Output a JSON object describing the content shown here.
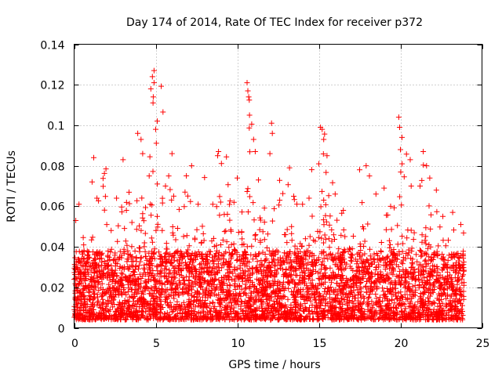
{
  "chart_data": {
    "type": "scatter",
    "title": "Day 174 of 2014, Rate Of TEC Index for receiver p372",
    "xlabel": "GPS time / hours",
    "ylabel": "ROTI / TECUs",
    "xlim": [
      0,
      25
    ],
    "ylim": [
      0,
      0.14
    ],
    "x_ticks": [
      0,
      5,
      10,
      15,
      20,
      25
    ],
    "x_tick_labels": [
      "0",
      "5",
      "10",
      "15",
      "20",
      "25"
    ],
    "y_ticks": [
      0,
      0.02,
      0.04,
      0.06,
      0.08,
      0.1,
      0.12,
      0.14
    ],
    "y_tick_labels": [
      "0",
      "0.02",
      "0.04",
      "0.06",
      "0.08",
      "0.1",
      "0.12",
      "0.14"
    ],
    "grid": true,
    "marker": "+",
    "color": "#ff0000",
    "x_range_of_data": [
      0,
      23.9
    ],
    "series": [
      {
        "name": "ROTI",
        "envelope_hours": [
          0,
          0.5,
          1,
          1.5,
          2,
          2.5,
          3,
          3.5,
          4,
          4.5,
          5,
          5.5,
          6,
          6.5,
          7,
          7.5,
          8,
          8.5,
          9,
          9.5,
          10,
          10.5,
          11,
          11.5,
          12,
          12.5,
          13,
          13.5,
          14,
          14.5,
          15,
          15.5,
          16,
          16.5,
          17,
          17.5,
          18,
          18.5,
          19,
          19.5,
          20,
          20.5,
          21,
          21.5,
          22,
          22.5,
          23,
          23.5
        ],
        "envelope_max": [
          0.054,
          0.062,
          0.064,
          0.084,
          0.058,
          0.064,
          0.083,
          0.066,
          0.097,
          0.118,
          0.127,
          0.073,
          0.081,
          0.077,
          0.066,
          0.08,
          0.062,
          0.072,
          0.087,
          0.07,
          0.074,
          0.121,
          0.093,
          0.075,
          0.101,
          0.078,
          0.079,
          0.07,
          0.066,
          0.082,
          0.099,
          0.09,
          0.065,
          0.065,
          0.058,
          0.079,
          0.077,
          0.066,
          0.07,
          0.073,
          0.104,
          0.083,
          0.087,
          0.081,
          0.066,
          0.055,
          0.058,
          0.051
        ],
        "points": [
          [
            0.1,
            0.053
          ],
          [
            0.3,
            0.061
          ],
          [
            0.6,
            0.033
          ],
          [
            1.1,
            0.072
          ],
          [
            1.2,
            0.084
          ],
          [
            1.4,
            0.064
          ],
          [
            2.0,
            0.051
          ],
          [
            2.6,
            0.064
          ],
          [
            3.0,
            0.083
          ],
          [
            3.2,
            0.058
          ],
          [
            3.9,
            0.096
          ],
          [
            4.1,
            0.093
          ],
          [
            4.2,
            0.086
          ],
          [
            4.6,
            0.075
          ],
          [
            4.7,
            0.118
          ],
          [
            4.8,
            0.124
          ],
          [
            4.85,
            0.114
          ],
          [
            4.9,
            0.127
          ],
          [
            4.9,
            0.121
          ],
          [
            5.0,
            0.098
          ],
          [
            5.1,
            0.071
          ],
          [
            5.6,
            0.07
          ],
          [
            5.8,
            0.075
          ],
          [
            6.0,
            0.086
          ],
          [
            6.1,
            0.065
          ],
          [
            6.8,
            0.067
          ],
          [
            7.2,
            0.08
          ],
          [
            7.6,
            0.061
          ],
          [
            8.5,
            0.061
          ],
          [
            8.8,
            0.085
          ],
          [
            8.85,
            0.087
          ],
          [
            9.2,
            0.056
          ],
          [
            9.8,
            0.062
          ],
          [
            10.0,
            0.074
          ],
          [
            10.6,
            0.121
          ],
          [
            10.65,
            0.117
          ],
          [
            10.7,
            0.114
          ],
          [
            10.75,
            0.105
          ],
          [
            11.0,
            0.093
          ],
          [
            11.1,
            0.087
          ],
          [
            11.3,
            0.073
          ],
          [
            12.0,
            0.086
          ],
          [
            12.1,
            0.101
          ],
          [
            12.15,
            0.096
          ],
          [
            12.6,
            0.063
          ],
          [
            13.2,
            0.079
          ],
          [
            14.0,
            0.061
          ],
          [
            14.4,
            0.064
          ],
          [
            15.0,
            0.081
          ],
          [
            15.1,
            0.099
          ],
          [
            15.2,
            0.098
          ],
          [
            15.3,
            0.093
          ],
          [
            15.5,
            0.085
          ],
          [
            16.0,
            0.066
          ],
          [
            16.5,
            0.058
          ],
          [
            17.5,
            0.078
          ],
          [
            17.9,
            0.08
          ],
          [
            18.1,
            0.075
          ],
          [
            18.5,
            0.066
          ],
          [
            19.0,
            0.069
          ],
          [
            19.4,
            0.06
          ],
          [
            19.9,
            0.104
          ],
          [
            19.95,
            0.099
          ],
          [
            20.0,
            0.088
          ],
          [
            20.1,
            0.081
          ],
          [
            20.6,
            0.083
          ],
          [
            21.2,
            0.07
          ],
          [
            21.4,
            0.087
          ],
          [
            21.6,
            0.08
          ],
          [
            21.8,
            0.074
          ],
          [
            22.2,
            0.068
          ],
          [
            22.6,
            0.055
          ],
          [
            23.2,
            0.057
          ],
          [
            23.7,
            0.051
          ],
          [
            0.4,
            0.012
          ],
          [
            0.9,
            0.018
          ],
          [
            1.6,
            0.025
          ],
          [
            2.2,
            0.009
          ],
          [
            2.9,
            0.021
          ],
          [
            3.6,
            0.015
          ],
          [
            4.3,
            0.031
          ],
          [
            5.4,
            0.019
          ],
          [
            6.3,
            0.027
          ],
          [
            7.0,
            0.011
          ],
          [
            7.9,
            0.034
          ],
          [
            8.3,
            0.016
          ],
          [
            9.1,
            0.022
          ],
          [
            9.6,
            0.008
          ],
          [
            10.3,
            0.041
          ],
          [
            11.6,
            0.024
          ],
          [
            12.4,
            0.013
          ],
          [
            13.0,
            0.029
          ],
          [
            13.7,
            0.018
          ],
          [
            14.2,
            0.036
          ],
          [
            14.8,
            0.02
          ],
          [
            15.8,
            0.014
          ],
          [
            16.3,
            0.032
          ],
          [
            16.9,
            0.01
          ],
          [
            17.3,
            0.025
          ],
          [
            18.3,
            0.019
          ],
          [
            18.8,
            0.038
          ],
          [
            19.3,
            0.012
          ],
          [
            20.3,
            0.027
          ],
          [
            20.9,
            0.016
          ],
          [
            21.5,
            0.033
          ],
          [
            22.0,
            0.021
          ],
          [
            22.4,
            0.009
          ],
          [
            22.9,
            0.03
          ],
          [
            23.4,
            0.017
          ],
          [
            23.8,
            0.011
          ]
        ]
      }
    ]
  }
}
